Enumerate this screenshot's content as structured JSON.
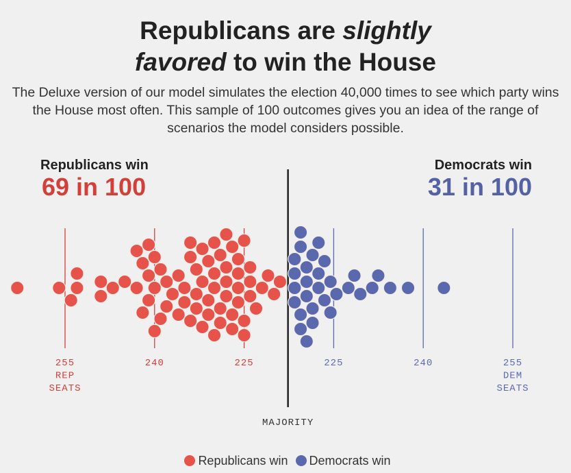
{
  "title": {
    "part1": "Republicans are ",
    "italic1": "slightly",
    "italic2": "favored",
    "part2": " to win the House"
  },
  "subtitle": "The Deluxe version of our model simulates the election 40,000 times to see which party wins the House most often. This sample of 100 outcomes gives you an idea of the range of scenarios the model considers possible.",
  "rep": {
    "label": "Republicans win",
    "odds": "69 in 100",
    "color": "#e5534b"
  },
  "dem": {
    "label": "Democrats win",
    "odds": "31 in 100",
    "color": "#5a69ae"
  },
  "majority_label": "MAJORITY",
  "legend": {
    "rep": "Republicans win",
    "dem": "Democrats win"
  },
  "chart_data": {
    "type": "scatter",
    "subtype": "beeswarm",
    "x_unit": "Republican seats",
    "majority": 218,
    "ticks": [
      {
        "rep_seats": 255,
        "lines": [
          "255",
          "REP",
          "SEATS"
        ],
        "party": "rep"
      },
      {
        "rep_seats": 240,
        "lines": [
          "240"
        ],
        "party": "rep"
      },
      {
        "rep_seats": 225,
        "lines": [
          "225"
        ],
        "party": "rep"
      },
      {
        "rep_seats": 210,
        "lines": [
          "225"
        ],
        "party": "dem"
      },
      {
        "rep_seats": 195,
        "lines": [
          "240"
        ],
        "party": "dem"
      },
      {
        "rep_seats": 180,
        "lines": [
          "255",
          "DEM",
          "SEATS"
        ],
        "party": "dem"
      }
    ],
    "rep_outcomes": [
      263,
      256,
      254,
      253,
      253,
      249,
      249,
      247,
      245,
      243,
      243,
      242,
      242,
      241,
      241,
      241,
      240,
      240,
      240,
      239,
      239,
      238,
      238,
      237,
      236,
      236,
      235,
      235,
      234,
      234,
      234,
      233,
      233,
      233,
      232,
      232,
      232,
      231,
      231,
      231,
      230,
      230,
      230,
      230,
      229,
      229,
      229,
      228,
      228,
      228,
      228,
      227,
      227,
      227,
      226,
      226,
      226,
      226,
      225,
      225,
      225,
      224,
      224,
      224,
      223,
      222,
      221,
      220,
      219
    ],
    "dem_outcomes": [
      217,
      217,
      217,
      217,
      216,
      216,
      216,
      216,
      215,
      215,
      215,
      215,
      214,
      214,
      214,
      213,
      213,
      213,
      212,
      212,
      211,
      211,
      210,
      208,
      207,
      206,
      204,
      203,
      201,
      198,
      192
    ]
  }
}
